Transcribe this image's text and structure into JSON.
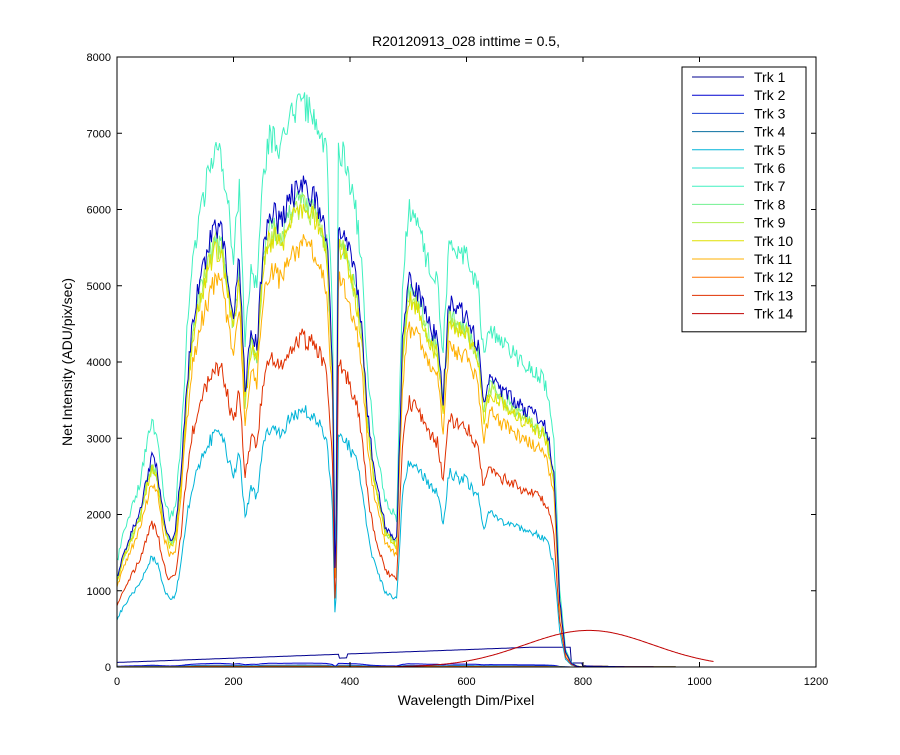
{
  "chart_data": {
    "type": "line",
    "title": "R20120913_028 inttime = 0.5,",
    "xlabel": "Wavelength Dim/Pixel",
    "ylabel": "Net Intensity (ADU/pix/sec)",
    "xlim": [
      0,
      1200
    ],
    "ylim": [
      0,
      8000
    ],
    "xticks": [
      0,
      200,
      400,
      600,
      800,
      1000,
      1200
    ],
    "yticks": [
      0,
      1000,
      2000,
      3000,
      4000,
      5000,
      6000,
      7000,
      8000
    ],
    "grid": false,
    "legend_position": "top-right",
    "series": [
      {
        "name": "Trk 1",
        "color": "#00008f",
        "profile": "base",
        "scale": 0.05,
        "kind": "flat"
      },
      {
        "name": "Trk 2",
        "color": "#0000d0",
        "profile": "base",
        "scale": 0.008,
        "kind": "flat"
      },
      {
        "name": "Trk 3",
        "color": "#1a3cd0",
        "profile": "base",
        "scale": 0.004,
        "kind": "flat"
      },
      {
        "name": "Trk 4",
        "color": "#0a6fa0",
        "profile": "base",
        "scale": 0.003,
        "kind": "flat"
      },
      {
        "name": "Trk 5",
        "color": "#00b4d8",
        "profile": "base",
        "scale": 0.52,
        "kind": "full"
      },
      {
        "name": "Trk 6",
        "color": "#30e0d0",
        "profile": "base",
        "scale": 0.002,
        "kind": "flat"
      },
      {
        "name": "Trk 7",
        "color": "#40f0c0",
        "profile": "base",
        "scale": 1.15,
        "kind": "full"
      },
      {
        "name": "Trk 8",
        "color": "#70f090",
        "profile": "base",
        "scale": 0.95,
        "kind": "full"
      },
      {
        "name": "Trk 9",
        "color": "#b0f050",
        "profile": "base",
        "scale": 0.94,
        "kind": "full"
      },
      {
        "name": "Trk 10",
        "color": "#e0e000",
        "profile": "base",
        "scale": 0.93,
        "kind": "full"
      },
      {
        "name": "Trk 11",
        "color": "#ffb000",
        "profile": "base",
        "scale": 0.86,
        "kind": "full"
      },
      {
        "name": "Trk 12",
        "color": "#ff7000",
        "profile": "base",
        "scale": 0.0015,
        "kind": "flat"
      },
      {
        "name": "Trk 13",
        "color": "#e03000",
        "profile": "base",
        "scale": 0.67,
        "kind": "full"
      },
      {
        "name": "Trk 14",
        "color": "#c00000",
        "profile": "gauss",
        "peak": 480,
        "center": 810,
        "width": 110,
        "kind": "gauss"
      }
    ],
    "dark_blue_trace": {
      "color": "#0000c0",
      "scale": 0.98
    },
    "base_profile_x": [
      0,
      10,
      20,
      30,
      40,
      50,
      60,
      70,
      80,
      90,
      100,
      110,
      120,
      130,
      140,
      150,
      160,
      170,
      180,
      190,
      200,
      210,
      220,
      230,
      240,
      250,
      260,
      270,
      280,
      290,
      300,
      310,
      320,
      330,
      340,
      350,
      360,
      370,
      375,
      380,
      390,
      400,
      410,
      420,
      430,
      440,
      450,
      460,
      470,
      480,
      490,
      500,
      510,
      520,
      530,
      540,
      550,
      560,
      570,
      580,
      590,
      600,
      610,
      620,
      630,
      640,
      650,
      660,
      670,
      680,
      690,
      700,
      710,
      720,
      730,
      740,
      750,
      760,
      770,
      780,
      790,
      800
    ],
    "base_profile_y": [
      1200,
      1500,
      1700,
      1900,
      2100,
      2500,
      2800,
      2600,
      2000,
      1700,
      1800,
      2600,
      3800,
      4600,
      5100,
      5400,
      5700,
      5900,
      5800,
      5300,
      4700,
      5500,
      3700,
      4500,
      4300,
      5500,
      6000,
      6050,
      5900,
      6100,
      6300,
      6400,
      6450,
      6350,
      6300,
      6100,
      5800,
      4000,
      700,
      5900,
      5800,
      5500,
      5200,
      4600,
      3400,
      2700,
      2300,
      1900,
      1800,
      1700,
      4300,
      5200,
      5100,
      5000,
      4700,
      4500,
      4400,
      3600,
      4900,
      4800,
      4750,
      4700,
      4500,
      4300,
      3500,
      3900,
      3800,
      3700,
      3650,
      3600,
      3500,
      3450,
      3400,
      3350,
      3300,
      3100,
      2600,
      900,
      200,
      50,
      10,
      0
    ]
  }
}
